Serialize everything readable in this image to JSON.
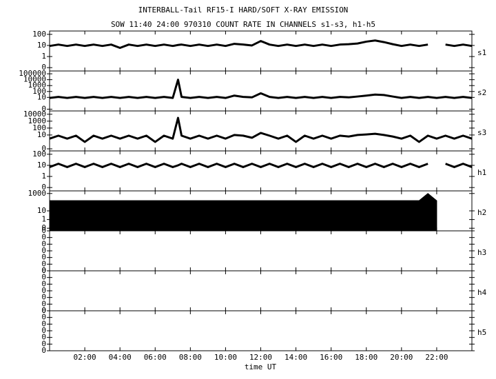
{
  "chart_data": {
    "type": "stacked",
    "title": "INTERBALL-Tail RF15-I HARD/SOFT X-RAY EMISSION",
    "subtitle": "SOW 11:40 24:00 970310  COUNT RATE IN CHANNELS s1-s3, h1-h5",
    "xlabel": "time UT",
    "xlim": [
      0,
      24
    ],
    "xticks": [
      {
        "value": 2,
        "label": "02:00"
      },
      {
        "value": 4,
        "label": "04:00"
      },
      {
        "value": 6,
        "label": "06:00"
      },
      {
        "value": 8,
        "label": "08:00"
      },
      {
        "value": 10,
        "label": "10:00"
      },
      {
        "value": 12,
        "label": "12:00"
      },
      {
        "value": 14,
        "label": "14:00"
      },
      {
        "value": 16,
        "label": "16:00"
      },
      {
        "value": 18,
        "label": "18:00"
      },
      {
        "value": 20,
        "label": "20:00"
      },
      {
        "value": 22,
        "label": "22:00"
      }
    ],
    "x": [
      0,
      0.5,
      1,
      1.5,
      2,
      2.5,
      3,
      3.5,
      4,
      4.5,
      5,
      5.5,
      6,
      6.5,
      7,
      7.3,
      7.5,
      8,
      8.5,
      9,
      9.5,
      10,
      10.5,
      11,
      11.5,
      12,
      12.5,
      13,
      13.5,
      14,
      14.5,
      15,
      15.5,
      16,
      16.5,
      17,
      17.5,
      18,
      18.5,
      19,
      19.5,
      20,
      20.5,
      21,
      21.5,
      22,
      22.5,
      23,
      23.5,
      24
    ],
    "panels": [
      {
        "type": "line",
        "label": "s1",
        "log": true,
        "ylim": [
          0.05,
          200
        ],
        "color": "#000000",
        "yticks": [
          {
            "value": 0.1,
            "label": "0"
          },
          1,
          10,
          100
        ],
        "values": [
          9,
          12,
          9,
          12,
          9,
          12,
          9,
          12,
          6,
          12,
          9,
          12,
          9,
          12,
          9,
          11,
          12,
          9,
          12,
          9,
          12,
          9,
          14,
          12,
          10,
          25,
          12,
          9,
          12,
          9,
          12,
          9,
          12,
          9,
          12,
          13,
          15,
          22,
          28,
          20,
          13,
          9,
          12,
          9,
          12,
          null,
          12,
          9,
          12,
          9
        ]
      },
      {
        "type": "line",
        "label": "s2",
        "log": true,
        "ylim": [
          0.05,
          300000
        ],
        "color": "#000000",
        "yticks": [
          {
            "value": 0.1,
            "label": "0"
          },
          10,
          100,
          1000,
          10000,
          100000
        ],
        "values": [
          8,
          12,
          8,
          12,
          8,
          12,
          8,
          12,
          8,
          12,
          8,
          12,
          8,
          12,
          8,
          10000,
          12,
          8,
          12,
          8,
          12,
          8,
          20,
          12,
          10,
          50,
          12,
          8,
          12,
          8,
          12,
          8,
          12,
          8,
          12,
          10,
          14,
          20,
          30,
          25,
          14,
          8,
          12,
          8,
          12,
          8,
          12,
          8,
          12,
          8
        ]
      },
      {
        "type": "line",
        "label": "s3",
        "log": true,
        "ylim": [
          0.05,
          30000
        ],
        "color": "#000000",
        "yticks": [
          {
            "value": 0.1,
            "label": "0"
          },
          10,
          100,
          1000,
          10000
        ],
        "values": [
          3,
          8,
          3,
          8,
          1,
          8,
          3,
          8,
          3,
          8,
          3,
          8,
          1,
          8,
          3,
          3000,
          8,
          3,
          8,
          3,
          8,
          3,
          10,
          8,
          4,
          20,
          8,
          3,
          8,
          1,
          8,
          3,
          8,
          3,
          8,
          6,
          10,
          12,
          15,
          10,
          6,
          3,
          8,
          1,
          8,
          3,
          8,
          3,
          8,
          3
        ]
      },
      {
        "type": "line",
        "label": "h1",
        "log": true,
        "ylim": [
          0.05,
          200
        ],
        "color": "#000000",
        "yticks": [
          {
            "value": 0.1,
            "label": "0"
          },
          1,
          10,
          100
        ],
        "values": [
          7,
          14,
          7,
          14,
          7,
          14,
          7,
          14,
          7,
          14,
          7,
          14,
          7,
          14,
          7,
          10,
          14,
          7,
          14,
          7,
          14,
          7,
          14,
          7,
          14,
          7,
          14,
          7,
          14,
          7,
          14,
          7,
          14,
          7,
          14,
          7,
          14,
          7,
          14,
          7,
          14,
          7,
          14,
          7,
          14,
          null,
          14,
          7,
          14,
          7
        ]
      },
      {
        "type": "area",
        "label": "h2",
        "log": true,
        "ylim": [
          0.05,
          2000
        ],
        "color": "#000000",
        "yticks": [
          {
            "value": 0.1,
            "label": "0"
          },
          1,
          10,
          1000
        ],
        "values": [
          150,
          150,
          150,
          150,
          150,
          150,
          150,
          150,
          150,
          150,
          150,
          150,
          150,
          150,
          150,
          150,
          150,
          150,
          150,
          150,
          150,
          150,
          150,
          150,
          150,
          150,
          150,
          150,
          150,
          150,
          150,
          150,
          150,
          150,
          150,
          150,
          150,
          150,
          150,
          150,
          150,
          150,
          150,
          150,
          1000,
          150,
          null,
          null,
          null,
          null
        ]
      },
      {
        "type": "empty",
        "label": "h3",
        "log": false,
        "ylim": [
          0,
          0.42
        ],
        "yticks": [
          {
            "value": 0,
            "label": "0"
          },
          {
            "value": 0.07,
            "label": "0"
          },
          {
            "value": 0.14,
            "label": "0"
          },
          {
            "value": 0.21,
            "label": "0"
          },
          {
            "value": 0.28,
            "label": "0"
          },
          {
            "value": 0.35,
            "label": "0"
          },
          {
            "value": 0.42,
            "label": "0"
          }
        ]
      },
      {
        "type": "empty",
        "label": "h4",
        "log": false,
        "ylim": [
          0,
          0.42
        ],
        "yticks": [
          {
            "value": 0,
            "label": "0"
          },
          {
            "value": 0.07,
            "label": "0"
          },
          {
            "value": 0.14,
            "label": "0"
          },
          {
            "value": 0.21,
            "label": "0"
          },
          {
            "value": 0.28,
            "label": "0"
          },
          {
            "value": 0.35,
            "label": "0"
          },
          {
            "value": 0.42,
            "label": "0"
          }
        ]
      },
      {
        "type": "empty",
        "label": "h5",
        "log": false,
        "ylim": [
          0,
          0.42
        ],
        "yticks": [
          {
            "value": 0,
            "label": "0"
          },
          {
            "value": 0.07,
            "label": "0"
          },
          {
            "value": 0.14,
            "label": "0"
          },
          {
            "value": 0.21,
            "label": "0"
          },
          {
            "value": 0.28,
            "label": "0"
          },
          {
            "value": 0.35,
            "label": "0"
          },
          {
            "value": 0.42,
            "label": "0"
          }
        ]
      }
    ]
  }
}
